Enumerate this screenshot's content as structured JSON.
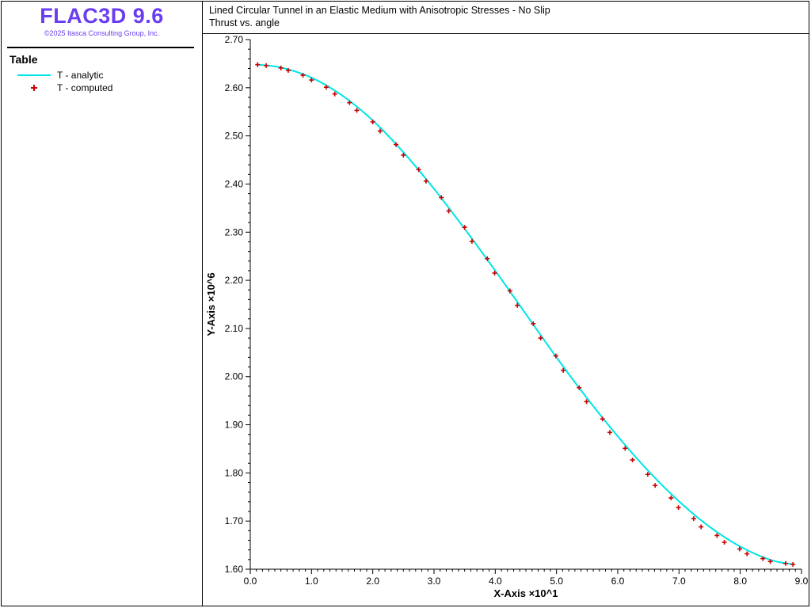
{
  "app": {
    "name": "FLAC3D 9.6",
    "copyright": "©2025 Itasca Consulting Group, Inc."
  },
  "legend": {
    "title": "Table",
    "items": [
      {
        "label": "T - analytic",
        "kind": "line",
        "color": "#00e5e5"
      },
      {
        "label": "T - computed",
        "kind": "marker",
        "color": "#cc0000"
      }
    ]
  },
  "chart_data": {
    "type": "line",
    "title": "Lined Circular Tunnel in an Elastic Medium with Anisotropic Stresses - No Slip",
    "subtitle": "Thrust vs. angle",
    "xlabel": "X-Axis ×10^1",
    "ylabel": "Y-Axis ×10^6",
    "xlim": [
      0,
      9
    ],
    "ylim": [
      1.6,
      2.7
    ],
    "xticks": [
      "0.0",
      "1.0",
      "2.0",
      "3.0",
      "4.0",
      "5.0",
      "6.0",
      "7.0",
      "8.0",
      "9.0"
    ],
    "yticks": [
      "1.60",
      "1.70",
      "1.80",
      "1.90",
      "2.00",
      "2.10",
      "2.20",
      "2.30",
      "2.40",
      "2.50",
      "2.60",
      "2.70"
    ],
    "grid": false,
    "legend_position": "left panel",
    "series": [
      {
        "name": "T - analytic",
        "style": "line",
        "color": "#00e5e5",
        "x": [
          0.12,
          0.5,
          1.0,
          1.5,
          2.0,
          2.5,
          3.0,
          3.5,
          4.0,
          4.5,
          5.0,
          5.5,
          6.0,
          6.5,
          7.0,
          7.5,
          8.0,
          8.5,
          8.88
        ],
        "y": [
          2.648,
          2.642,
          2.621,
          2.584,
          2.532,
          2.466,
          2.39,
          2.307,
          2.22,
          2.13,
          2.04,
          1.955,
          1.876,
          1.804,
          1.741,
          1.688,
          1.647,
          1.619,
          1.61
        ]
      },
      {
        "name": "T - computed",
        "style": "marker",
        "color": "#cc0000",
        "points": [
          [
            0.12,
            2.648
          ],
          [
            0.26,
            2.646
          ],
          [
            0.5,
            2.641
          ],
          [
            0.62,
            2.636
          ],
          [
            0.86,
            2.626
          ],
          [
            1.0,
            2.616
          ],
          [
            1.24,
            2.601
          ],
          [
            1.38,
            2.587
          ],
          [
            1.62,
            2.569
          ],
          [
            1.74,
            2.553
          ],
          [
            2.0,
            2.529
          ],
          [
            2.12,
            2.51
          ],
          [
            2.38,
            2.482
          ],
          [
            2.5,
            2.46
          ],
          [
            2.75,
            2.43
          ],
          [
            2.87,
            2.406
          ],
          [
            3.12,
            2.372
          ],
          [
            3.24,
            2.344
          ],
          [
            3.5,
            2.31
          ],
          [
            3.62,
            2.281
          ],
          [
            3.87,
            2.245
          ],
          [
            3.99,
            2.215
          ],
          [
            4.24,
            2.178
          ],
          [
            4.36,
            2.148
          ],
          [
            4.62,
            2.11
          ],
          [
            4.74,
            2.08
          ],
          [
            4.99,
            2.043
          ],
          [
            5.11,
            2.013
          ],
          [
            5.37,
            1.977
          ],
          [
            5.49,
            1.948
          ],
          [
            5.75,
            1.912
          ],
          [
            5.87,
            1.884
          ],
          [
            6.12,
            1.851
          ],
          [
            6.24,
            1.827
          ],
          [
            6.49,
            1.797
          ],
          [
            6.61,
            1.774
          ],
          [
            6.87,
            1.748
          ],
          [
            6.99,
            1.728
          ],
          [
            7.24,
            1.705
          ],
          [
            7.36,
            1.688
          ],
          [
            7.62,
            1.67
          ],
          [
            7.74,
            1.656
          ],
          [
            7.99,
            1.642
          ],
          [
            8.11,
            1.632
          ],
          [
            8.37,
            1.622
          ],
          [
            8.49,
            1.616
          ],
          [
            8.74,
            1.612
          ],
          [
            8.86,
            1.61
          ]
        ]
      }
    ]
  }
}
